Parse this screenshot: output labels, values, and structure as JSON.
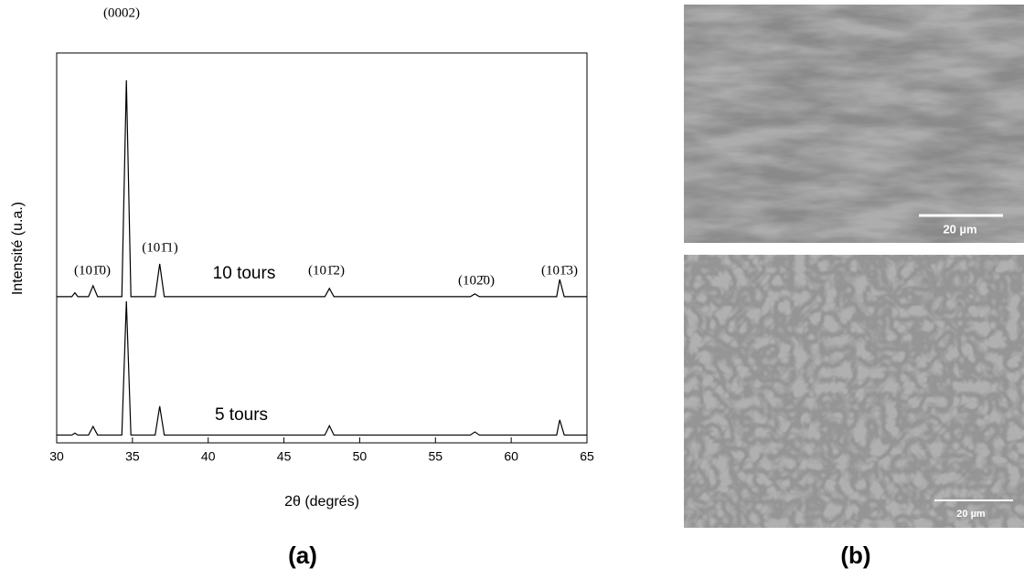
{
  "chart_data": {
    "type": "line",
    "xlabel": "2θ (degrés)",
    "ylabel": "Intensité (u.a.)",
    "x": [
      30,
      31,
      31.2,
      31.4,
      32.1,
      32.4,
      32.7,
      34.3,
      34.6,
      34.9,
      36.5,
      36.8,
      37.1,
      47.7,
      48,
      48.3,
      57.3,
      57.6,
      57.9,
      63,
      63.2,
      63.5,
      65
    ],
    "series": [
      {
        "name": "10 tours",
        "color": "#000000",
        "values": [
          37.5,
          37.5,
          38.5,
          37.5,
          37.5,
          40.3,
          37.5,
          37.5,
          93,
          37.5,
          37.5,
          45.9,
          37.5,
          37.5,
          39.6,
          37.5,
          37.5,
          38.2,
          37.5,
          37.5,
          41.9,
          37.5,
          37.5
        ]
      },
      {
        "name": "5 tours",
        "color": "#000000",
        "values": [
          2,
          2,
          2.5,
          2,
          2,
          4.2,
          2,
          2,
          36.3,
          2,
          2,
          9.4,
          2,
          2,
          4.4,
          2,
          2,
          2.8,
          2,
          2,
          5.9,
          2,
          2
        ]
      }
    ],
    "xlim": [
      30,
      65
    ],
    "ylim": [
      0,
      100
    ],
    "xticks": [
      30,
      35,
      40,
      45,
      50,
      55,
      60,
      65
    ],
    "annotations": [
      "(0002)",
      "(101̄0)",
      "(101̄1)",
      "(101̄2)",
      "(102̄0)",
      "(101̄3)"
    ]
  },
  "panels": {
    "a": "(a)",
    "b": "(b)"
  },
  "micrographs": [
    {
      "scale_bar": "20 µm"
    },
    {
      "scale_bar": "20 µm"
    }
  ]
}
